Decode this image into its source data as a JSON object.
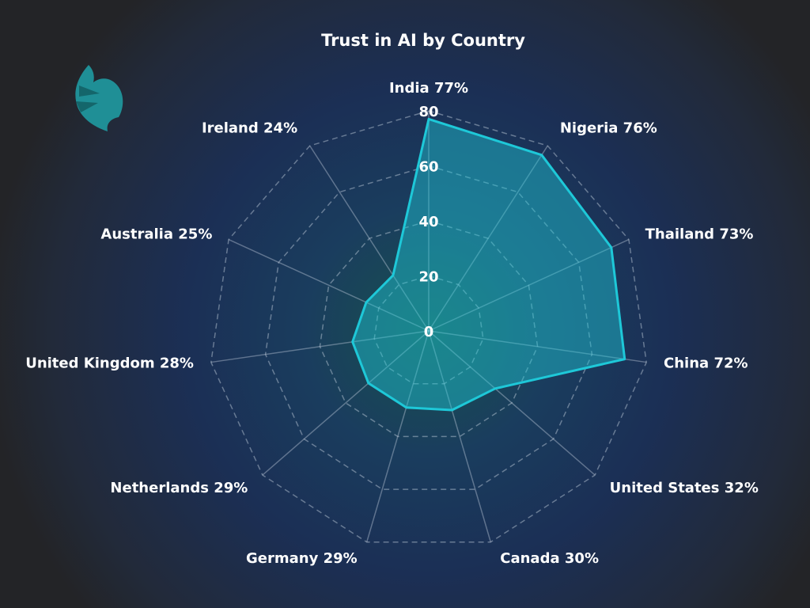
{
  "chart_data": {
    "type": "radar",
    "title": "Trust in AI by Country",
    "categories": [
      "India",
      "Nigeria",
      "Thailand",
      "China",
      "United States",
      "Canada",
      "Germany",
      "Netherlands",
      "United Kingdom",
      "Australia",
      "Ireland"
    ],
    "values": [
      77,
      76,
      73,
      72,
      32,
      30,
      29,
      29,
      28,
      25,
      24
    ],
    "value_labels": [
      "77%",
      "76%",
      "73%",
      "72%",
      "32%",
      "30%",
      "29%",
      "29%",
      "28%",
      "25%",
      "24%"
    ],
    "color": "#1ec8d8",
    "rlim": [
      0,
      80
    ],
    "rticks": [
      0,
      20,
      40,
      60,
      80
    ],
    "grid": true
  }
}
